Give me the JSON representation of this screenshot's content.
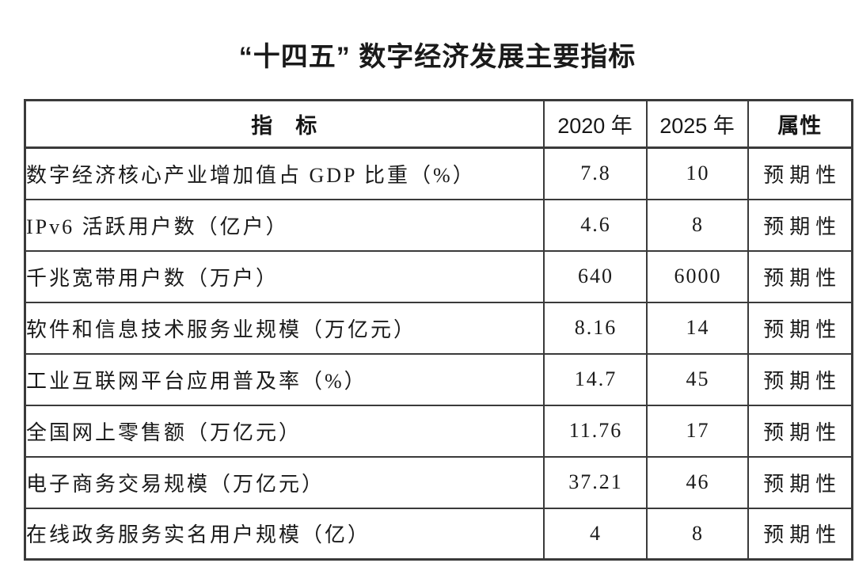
{
  "title": "“十四五” 数字经济发展主要指标",
  "colors": {
    "background": "#ffffff",
    "text": "#1a1a1a",
    "table_border": "#3a3a3a"
  },
  "table": {
    "headers": {
      "indicator": "指　标",
      "y2020": "2020 年",
      "y2025": "2025 年",
      "attribute": "属性"
    },
    "rows": [
      {
        "indicator": "数字经济核心产业增加值占 GDP 比重（%）",
        "y2020": "7.8",
        "y2025": "10",
        "attribute": "预期性"
      },
      {
        "indicator": "IPv6 活跃用户数（亿户）",
        "y2020": "4.6",
        "y2025": "8",
        "attribute": "预期性"
      },
      {
        "indicator": "千兆宽带用户数（万户）",
        "y2020": "640",
        "y2025": "6000",
        "attribute": "预期性"
      },
      {
        "indicator": "软件和信息技术服务业规模（万亿元）",
        "y2020": "8.16",
        "y2025": "14",
        "attribute": "预期性"
      },
      {
        "indicator": "工业互联网平台应用普及率（%）",
        "y2020": "14.7",
        "y2025": "45",
        "attribute": "预期性"
      },
      {
        "indicator": "全国网上零售额（万亿元）",
        "y2020": "11.76",
        "y2025": "17",
        "attribute": "预期性"
      },
      {
        "indicator": "电子商务交易规模（万亿元）",
        "y2020": "37.21",
        "y2025": "46",
        "attribute": "预期性"
      },
      {
        "indicator": "在线政务服务实名用户规模（亿）",
        "y2020": "4",
        "y2025": "8",
        "attribute": "预期性"
      }
    ]
  }
}
